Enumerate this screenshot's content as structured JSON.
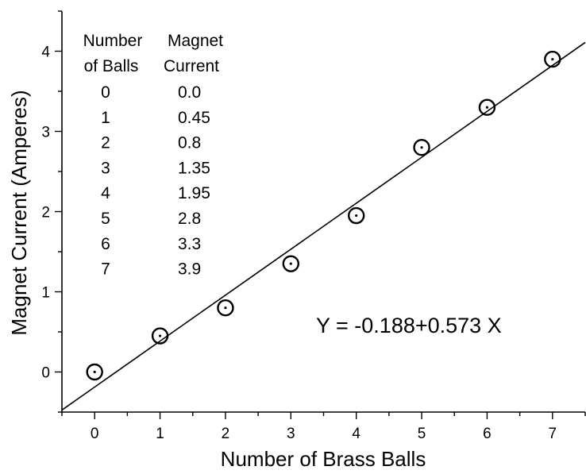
{
  "chart_data": {
    "type": "scatter",
    "xlabel": "Number of Brass Balls",
    "ylabel": "Magnet Current (Amperes)",
    "xlim": [
      -0.5,
      7.5
    ],
    "ylim": [
      -0.5,
      4.5
    ],
    "x_ticks": [
      0,
      1,
      2,
      3,
      4,
      5,
      6,
      7
    ],
    "y_ticks": [
      0,
      1,
      2,
      3,
      4
    ],
    "grid": false,
    "marker": "circle-with-center-dot",
    "series": [
      {
        "x": [
          0,
          1,
          2,
          3,
          4,
          5,
          6,
          7
        ],
        "y": [
          0.0,
          0.45,
          0.8,
          1.35,
          1.95,
          2.8,
          3.3,
          3.9
        ]
      }
    ],
    "fit_line": {
      "intercept": -0.188,
      "slope": 0.573,
      "equation": "Y = -0.188+0.573 X"
    },
    "table": {
      "headers": [
        [
          "Number",
          "of Balls"
        ],
        [
          "Magnet",
          "Current"
        ]
      ],
      "rows": [
        [
          "0",
          "0.0"
        ],
        [
          "1",
          "0.45"
        ],
        [
          "2",
          "0.8"
        ],
        [
          "3",
          "1.35"
        ],
        [
          "4",
          "1.95"
        ],
        [
          "5",
          "2.8"
        ],
        [
          "6",
          "3.3"
        ],
        [
          "7",
          "3.9"
        ]
      ]
    }
  }
}
